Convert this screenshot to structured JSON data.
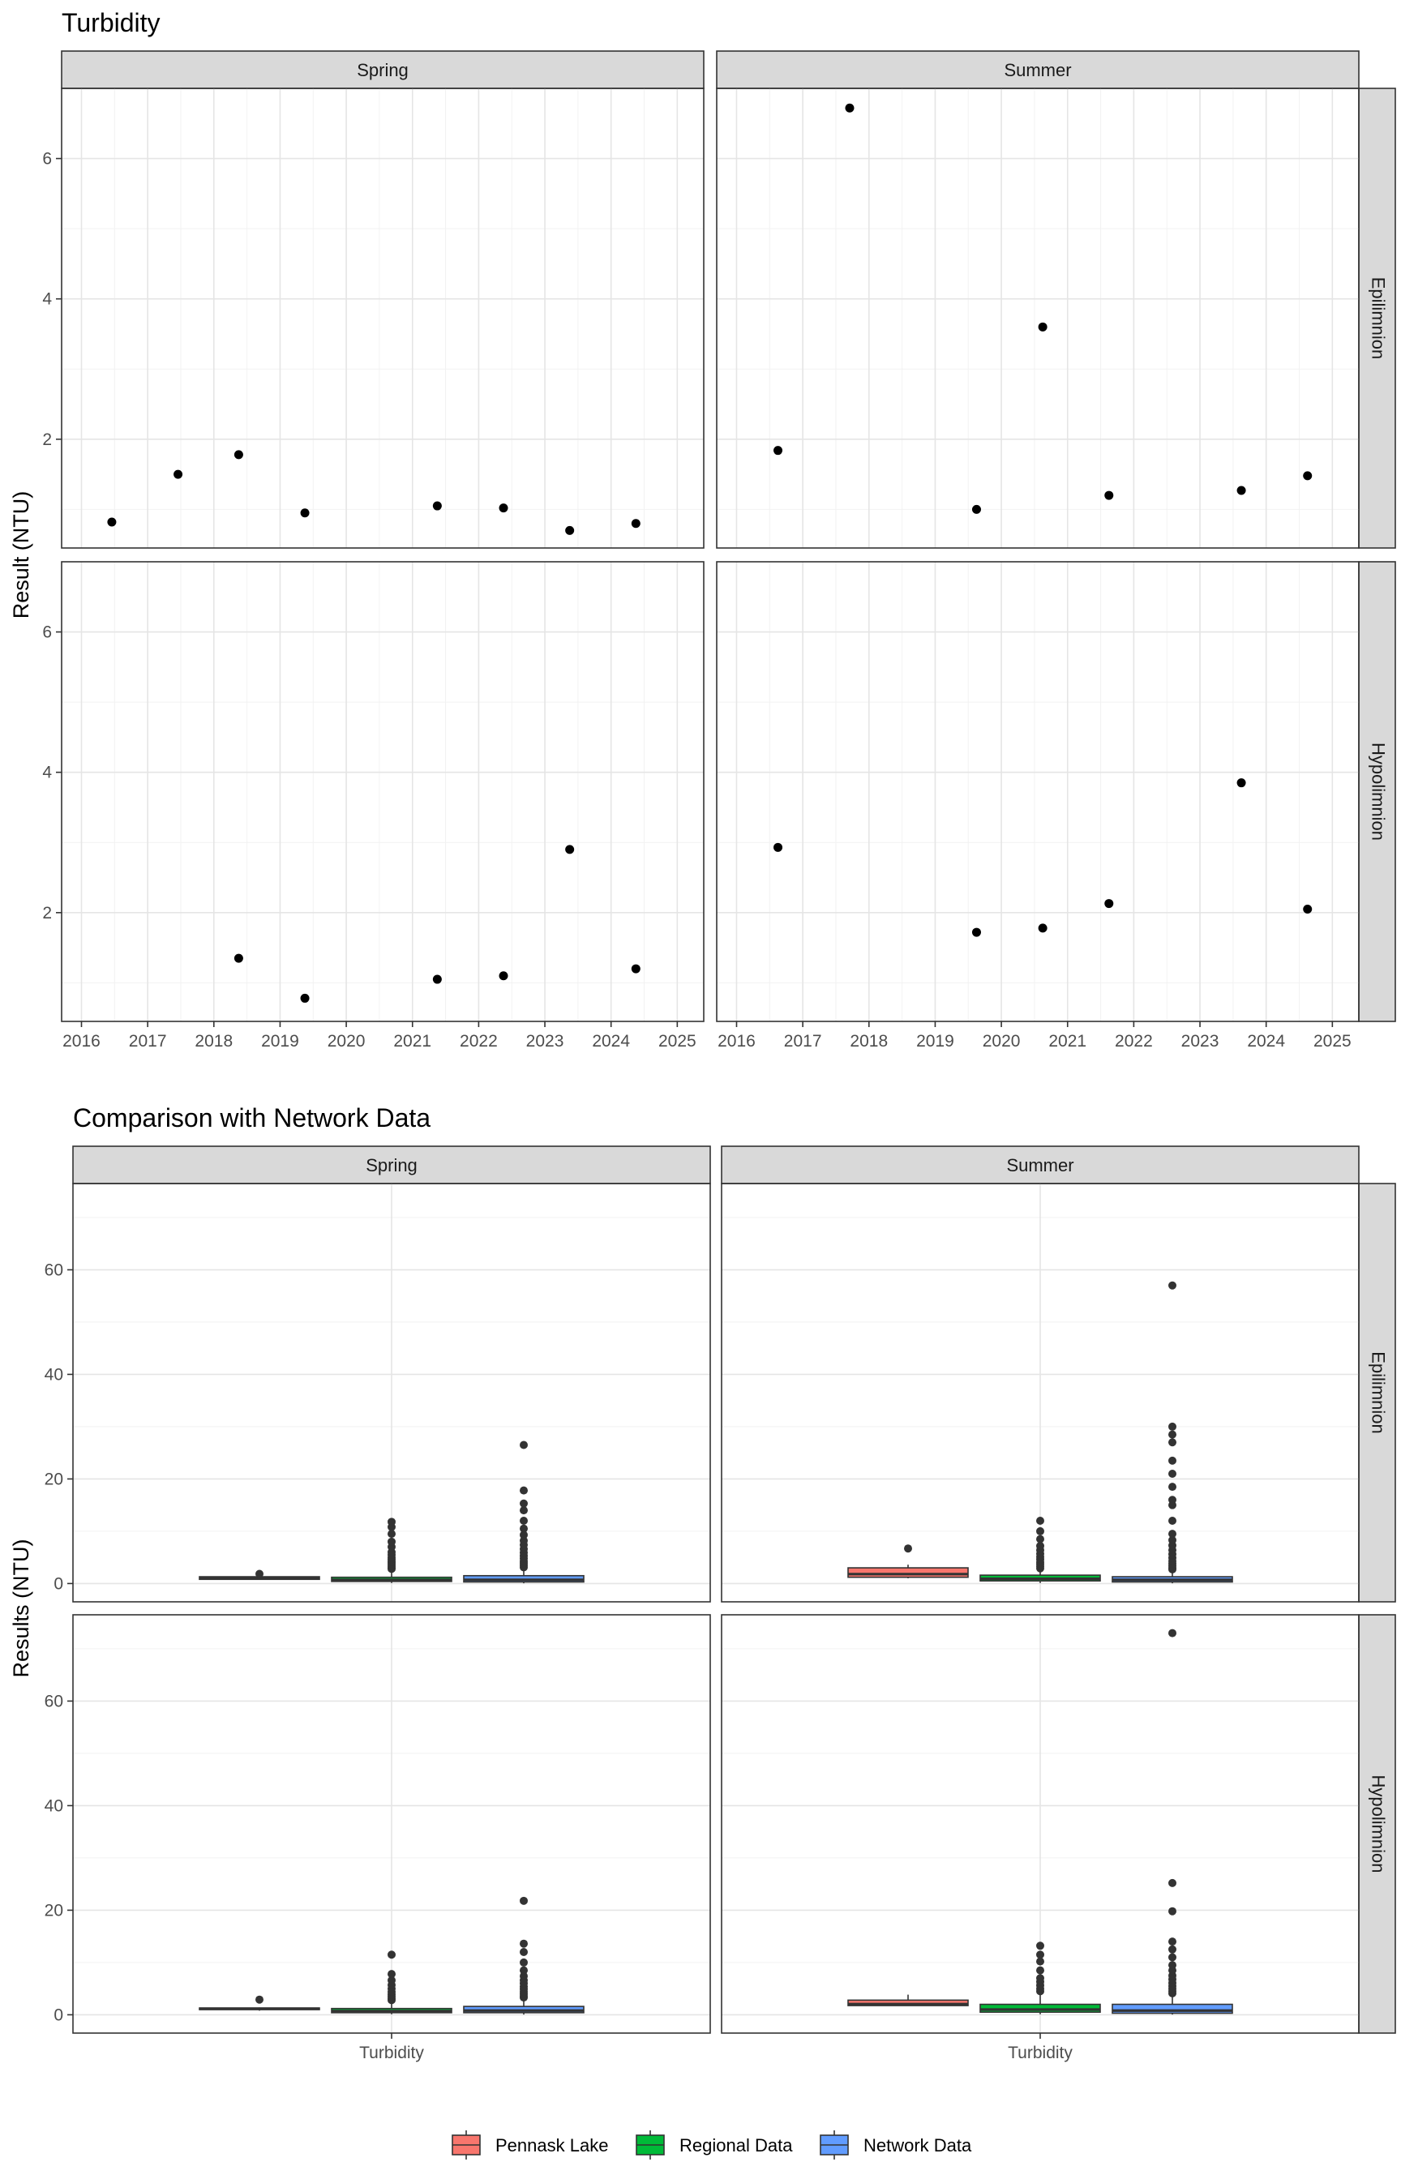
{
  "chart_data": [
    {
      "type": "scatter",
      "title": "Turbidity",
      "ylabel": "Result (NTU)",
      "xlabel": "",
      "column_facets": [
        "Spring",
        "Summer"
      ],
      "row_facets": [
        "Epilimnion",
        "Hypolimnion"
      ],
      "x_ticks": [
        "2016",
        "2017",
        "2018",
        "2019",
        "2020",
        "2021",
        "2022",
        "2023",
        "2024",
        "2025"
      ],
      "y_ticks": [
        "2",
        "4",
        "6"
      ],
      "xlim": [
        2015.7,
        2025.4
      ],
      "ylim": [
        0.45,
        7.0
      ],
      "grid": true,
      "panels": [
        {
          "column": "Spring",
          "row": "Epilimnion",
          "points": [
            {
              "x": "2016-06",
              "y": 0.82
            },
            {
              "x": "2017-06",
              "y": 1.5
            },
            {
              "x": "2018-05",
              "y": 1.78
            },
            {
              "x": "2019-05",
              "y": 0.95
            },
            {
              "x": "2021-05",
              "y": 1.05
            },
            {
              "x": "2022-05",
              "y": 1.02
            },
            {
              "x": "2023-05",
              "y": 0.7
            },
            {
              "x": "2024-05",
              "y": 0.8
            }
          ]
        },
        {
          "column": "Summer",
          "row": "Epilimnion",
          "points": [
            {
              "x": "2016-08",
              "y": 1.84
            },
            {
              "x": "2017-09",
              "y": 6.72
            },
            {
              "x": "2019-08",
              "y": 1.0
            },
            {
              "x": "2020-08",
              "y": 3.6
            },
            {
              "x": "2021-08",
              "y": 1.2
            },
            {
              "x": "2023-08",
              "y": 1.27
            },
            {
              "x": "2024-08",
              "y": 1.48
            }
          ]
        },
        {
          "column": "Spring",
          "row": "Hypolimnion",
          "points": [
            {
              "x": "2018-05",
              "y": 1.35
            },
            {
              "x": "2019-05",
              "y": 0.78
            },
            {
              "x": "2021-05",
              "y": 1.05
            },
            {
              "x": "2022-05",
              "y": 1.1
            },
            {
              "x": "2023-05",
              "y": 2.9
            },
            {
              "x": "2024-05",
              "y": 1.2
            }
          ]
        },
        {
          "column": "Summer",
          "row": "Hypolimnion",
          "points": [
            {
              "x": "2016-08",
              "y": 2.93
            },
            {
              "x": "2019-08",
              "y": 1.72
            },
            {
              "x": "2020-08",
              "y": 1.78
            },
            {
              "x": "2021-08",
              "y": 2.13
            },
            {
              "x": "2023-08",
              "y": 3.85
            },
            {
              "x": "2024-08",
              "y": 2.05
            }
          ]
        }
      ]
    },
    {
      "type": "box",
      "title": "Comparison with Network Data",
      "ylabel": "Results (NTU)",
      "xlabel": "",
      "categories": [
        "Turbidity"
      ],
      "column_facets": [
        "Spring",
        "Summer"
      ],
      "row_facets": [
        "Epilimnion",
        "Hypolimnion"
      ],
      "y_ticks": [
        "0",
        "20",
        "40",
        "60"
      ],
      "ylim": [
        -3.5,
        76.5
      ],
      "grid": true,
      "legend_position": "bottom",
      "series": [
        {
          "name": "Pennask Lake",
          "color": "#F8766D"
        },
        {
          "name": "Regional Data",
          "color": "#00BA38"
        },
        {
          "name": "Network Data",
          "color": "#619CFF"
        }
      ],
      "panels": [
        {
          "column": "Spring",
          "row": "Epilimnion",
          "boxes": [
            {
              "series": "Pennask Lake",
              "q1": 0.8,
              "median": 1.0,
              "q3": 1.3,
              "whisker_low": 0.7,
              "whisker_high": 1.8,
              "outliers": [
                1.85
              ]
            },
            {
              "series": "Regional Data",
              "q1": 0.4,
              "median": 0.7,
              "q3": 1.2,
              "whisker_low": 0.1,
              "whisker_high": 2.5,
              "outliers": [
                2.8,
                3.0,
                3.3,
                3.6,
                3.9,
                4.2,
                4.6,
                5.0,
                5.5,
                6.0,
                7.0,
                8.0,
                9.5,
                10.8,
                11.8
              ]
            },
            {
              "series": "Network Data",
              "q1": 0.3,
              "median": 0.7,
              "q3": 1.5,
              "whisker_low": 0.05,
              "whisker_high": 2.9,
              "outliers": [
                3.1,
                3.5,
                3.9,
                4.3,
                4.8,
                5.3,
                5.9,
                6.6,
                7.4,
                8.2,
                9.3,
                10.5,
                12.0,
                14.0,
                15.3,
                17.8,
                26.5
              ]
            }
          ]
        },
        {
          "column": "Summer",
          "row": "Epilimnion",
          "boxes": [
            {
              "series": "Pennask Lake",
              "q1": 1.2,
              "median": 1.8,
              "q3": 3.0,
              "whisker_low": 1.0,
              "whisker_high": 3.6,
              "outliers": [
                6.7
              ]
            },
            {
              "series": "Regional Data",
              "q1": 0.5,
              "median": 0.9,
              "q3": 1.6,
              "whisker_low": 0.1,
              "whisker_high": 2.7,
              "outliers": [
                2.9,
                3.3,
                3.7,
                4.1,
                4.6,
                5.1,
                5.7,
                6.4,
                7.2,
                8.5,
                10.0,
                12.0
              ]
            },
            {
              "series": "Network Data",
              "q1": 0.3,
              "median": 0.7,
              "q3": 1.3,
              "whisker_low": 0.05,
              "whisker_high": 2.5,
              "outliers": [
                2.7,
                3.0,
                3.4,
                3.8,
                4.3,
                4.9,
                5.6,
                6.4,
                7.3,
                8.3,
                9.5,
                12.0,
                15.0,
                16.0,
                18.5,
                21.0,
                23.5,
                27.0,
                28.5,
                30.0,
                57.0
              ]
            }
          ]
        },
        {
          "column": "Spring",
          "row": "Hypolimnion",
          "boxes": [
            {
              "series": "Pennask Lake",
              "q1": 1.0,
              "median": 1.15,
              "q3": 1.3,
              "whisker_low": 0.78,
              "whisker_high": 1.4,
              "outliers": [
                2.9
              ]
            },
            {
              "series": "Regional Data",
              "q1": 0.4,
              "median": 0.7,
              "q3": 1.2,
              "whisker_low": 0.1,
              "whisker_high": 2.5,
              "outliers": [
                2.8,
                3.1,
                3.5,
                3.9,
                4.4,
                5.0,
                5.7,
                6.6,
                7.8,
                11.5
              ]
            },
            {
              "series": "Network Data",
              "q1": 0.4,
              "median": 0.8,
              "q3": 1.6,
              "whisker_low": 0.05,
              "whisker_high": 3.0,
              "outliers": [
                3.3,
                3.6,
                4.0,
                4.4,
                4.9,
                5.4,
                6.0,
                6.6,
                7.4,
                8.5,
                10.0,
                12.0,
                13.6,
                21.8
              ]
            }
          ]
        },
        {
          "column": "Summer",
          "row": "Hypolimnion",
          "boxes": [
            {
              "series": "Pennask Lake",
              "q1": 1.76,
              "median": 2.05,
              "q3": 2.8,
              "whisker_low": 1.72,
              "whisker_high": 3.85,
              "outliers": []
            },
            {
              "series": "Regional Data",
              "q1": 0.5,
              "median": 1.0,
              "q3": 2.0,
              "whisker_low": 0.1,
              "whisker_high": 4.0,
              "outliers": [
                4.5,
                5.0,
                5.6,
                6.3,
                7.0,
                8.5,
                10.2,
                11.5,
                13.2
              ]
            },
            {
              "series": "Network Data",
              "q1": 0.3,
              "median": 0.8,
              "q3": 2.0,
              "whisker_low": 0.05,
              "whisker_high": 3.8,
              "outliers": [
                4.1,
                4.5,
                5.0,
                5.5,
                6.1,
                6.8,
                7.5,
                8.5,
                9.5,
                11.0,
                12.5,
                14.0,
                19.8,
                25.2,
                73.0
              ]
            }
          ]
        }
      ]
    }
  ]
}
